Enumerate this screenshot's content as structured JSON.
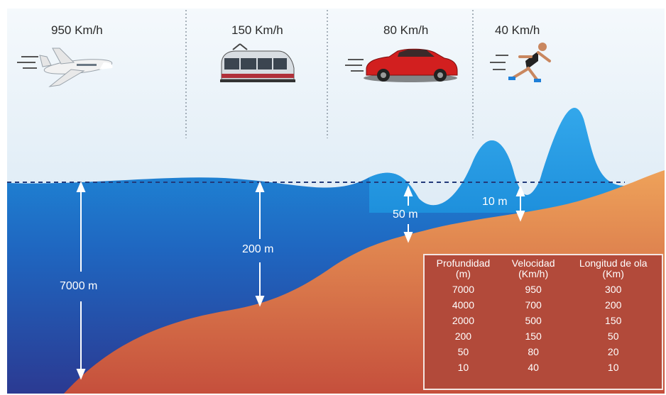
{
  "speeds": [
    "950 Km/h",
    "150 Km/h",
    "80 Km/h",
    "40 Km/h"
  ],
  "depths": [
    "7000 m",
    "200 m",
    "50 m",
    "10 m"
  ],
  "table": {
    "headers": [
      {
        "line1": "Profundidad",
        "line2": "(m)"
      },
      {
        "line1": "Velocidad",
        "line2": "(Km/h)"
      },
      {
        "line1": "Longitud de ola",
        "line2": "(Km)"
      }
    ],
    "rows": [
      [
        "7000",
        "950",
        "300"
      ],
      [
        "4000",
        "700",
        "200"
      ],
      [
        "2000",
        "500",
        "150"
      ],
      [
        "200",
        "150",
        "50"
      ],
      [
        "50",
        "80",
        "20"
      ],
      [
        "10",
        "40",
        "10"
      ]
    ]
  },
  "colors": {
    "sky": "#e3eef7",
    "ocean_light": "#1e96e0",
    "ocean_dark": "#2a3f97",
    "seabed_light": "#e8994f",
    "seabed_dark": "#c2553e",
    "table_bg": "#b24a3a"
  },
  "icons": [
    "jet-plane-icon",
    "tram-icon",
    "red-car-icon",
    "runner-icon"
  ]
}
